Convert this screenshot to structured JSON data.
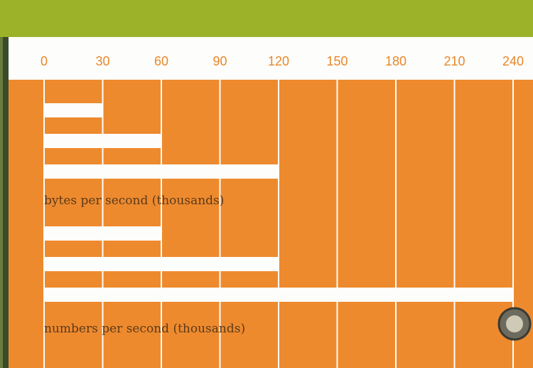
{
  "header": {
    "title": "— — — — — — — — — — —"
  },
  "chart_data": {
    "type": "bar",
    "title": "",
    "xlabel": "",
    "ylabel": "",
    "x_ticks": [
      0,
      30,
      60,
      90,
      120,
      150,
      180,
      210,
      240
    ],
    "xlim": [
      0,
      240
    ],
    "grid": true,
    "colors": {
      "background": "#ee8a2e",
      "bar": "#fdfdfb",
      "grid": "#fdfdfb",
      "tick": "#e8872a",
      "label": "#5a3a1a"
    },
    "groups": [
      {
        "name": "bytes per second (thousands)",
        "values": [
          30,
          60,
          120
        ]
      },
      {
        "name": "numbers per second (thousands)",
        "values": [
          60,
          120,
          240
        ]
      }
    ]
  }
}
